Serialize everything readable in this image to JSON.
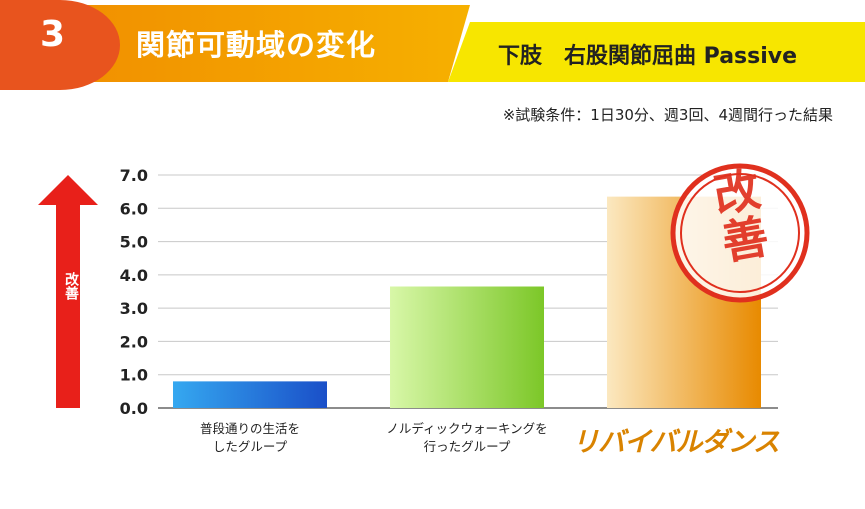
{
  "header": {
    "number": "3",
    "title": "関節可動域の変化",
    "subtitle": "下肢　右股関節屈曲 Passive"
  },
  "note": "※試験条件：1日30分、週3回、4週間行った結果",
  "arrow_label": "改善",
  "stamp_label": "改善",
  "logo_text": "リバイバルダンス",
  "colors": {
    "orange": "#f08a00",
    "yellow": "#f7e600",
    "red": "#e0301e",
    "bar1": "#1f6fd8",
    "bar2": "#8fd43a",
    "bar3": "#f2b23a"
  },
  "chart_data": {
    "type": "bar",
    "categories": [
      "普段通りの生活をしたグループ",
      "ノルディックウォーキングを行ったグループ",
      "リバイバルダンス"
    ],
    "category_lines": [
      [
        "普段通りの生活を",
        "したグループ"
      ],
      [
        "ノルディックウォーキングを",
        "行ったグループ"
      ]
    ],
    "values": [
      0.8,
      3.65,
      6.35
    ],
    "yticks": [
      "0.0",
      "1.0",
      "2.0",
      "3.0",
      "4.0",
      "5.0",
      "6.0",
      "7.0"
    ],
    "ylim": [
      0,
      7
    ],
    "grid": true
  }
}
